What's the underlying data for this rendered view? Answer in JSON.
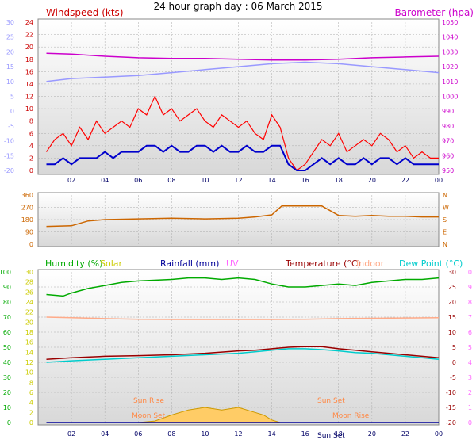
{
  "title": "24 hour graph day : 06 March 2015",
  "x_ticks": [
    "02",
    "04",
    "06",
    "08",
    "10",
    "12",
    "14",
    "16",
    "18",
    "20",
    "22",
    "00"
  ],
  "colors": {
    "windspeed": "#ff0000",
    "windavg": "#0000cc",
    "barometer": "#cc00cc",
    "outer_temp_axis": "#9999ff",
    "direction": "#cc6600",
    "humidity": "#00aa00",
    "solar": "#cccc00",
    "rainfall": "#000099",
    "uv": "#ff66ff",
    "temperature": "#990000",
    "indoor": "#ffaa88",
    "dewpoint": "#00cccc",
    "grid": "#aaaaaa"
  },
  "chart_data": [
    {
      "type": "line",
      "name": "wind-baro",
      "left_label": "Windspeed (kts)",
      "right_label": "Barometer (hpa)",
      "outer_left_ticks": [
        "30",
        "25",
        "20",
        "15",
        "10",
        "5",
        "0",
        "-5",
        "-10",
        "-15",
        "-20"
      ],
      "y_left_ticks": [
        "24",
        "22",
        "20",
        "18",
        "16",
        "14",
        "12",
        "10",
        "8",
        "6",
        "4",
        "2",
        "0"
      ],
      "y_right_ticks": [
        "1050",
        "1040",
        "1030",
        "1020",
        "1010",
        "1000",
        "990",
        "980",
        "970",
        "960",
        "950"
      ],
      "ylim_left": [
        0,
        24
      ],
      "ylim_right": [
        950,
        1050
      ],
      "ylim_outer": [
        -20,
        30
      ],
      "series": [
        {
          "key": "gust",
          "axis": "left",
          "x": [
            0.5,
            1,
            1.5,
            2,
            2.5,
            3,
            3.5,
            4,
            4.5,
            5,
            5.5,
            6,
            6.5,
            7,
            7.5,
            8,
            8.5,
            9,
            9.5,
            10,
            10.5,
            11,
            11.5,
            12,
            12.5,
            13,
            13.5,
            14,
            14.5,
            15,
            15.5,
            16,
            16.5,
            17,
            17.5,
            18,
            18.5,
            19,
            19.5,
            20,
            20.5,
            21,
            21.5,
            22,
            22.5,
            23,
            23.5,
            24
          ],
          "y": [
            3,
            5,
            6,
            4,
            7,
            5,
            8,
            6,
            7,
            8,
            7,
            10,
            9,
            12,
            9,
            10,
            8,
            9,
            10,
            8,
            7,
            9,
            8,
            7,
            8,
            6,
            5,
            9,
            7,
            2,
            0,
            1,
            3,
            5,
            4,
            6,
            3,
            4,
            5,
            4,
            6,
            5,
            3,
            4,
            2,
            3,
            2,
            2
          ]
        },
        {
          "key": "avg",
          "axis": "left",
          "x": [
            0.5,
            1,
            1.5,
            2,
            2.5,
            3,
            3.5,
            4,
            4.5,
            5,
            5.5,
            6,
            6.5,
            7,
            7.5,
            8,
            8.5,
            9,
            9.5,
            10,
            10.5,
            11,
            11.5,
            12,
            12.5,
            13,
            13.5,
            14,
            14.5,
            15,
            15.5,
            16,
            16.5,
            17,
            17.5,
            18,
            18.5,
            19,
            19.5,
            20,
            20.5,
            21,
            21.5,
            22,
            22.5,
            23,
            23.5,
            24
          ],
          "y": [
            1,
            1,
            2,
            1,
            2,
            2,
            2,
            3,
            2,
            3,
            3,
            3,
            4,
            4,
            3,
            4,
            3,
            3,
            4,
            4,
            3,
            4,
            3,
            3,
            4,
            3,
            3,
            4,
            4,
            1,
            0,
            0,
            1,
            2,
            1,
            2,
            1,
            1,
            2,
            1,
            2,
            2,
            1,
            2,
            1,
            1,
            1,
            1
          ]
        },
        {
          "key": "baro",
          "axis": "right",
          "x": [
            0.5,
            2,
            4,
            6,
            8,
            10,
            12,
            14,
            16,
            18,
            20,
            22,
            24
          ],
          "y": [
            1029,
            1028.5,
            1027,
            1026,
            1025.5,
            1025.5,
            1025,
            1024.5,
            1024.5,
            1025,
            1026,
            1026.5,
            1027
          ]
        },
        {
          "key": "temp_outer",
          "axis": "outer",
          "x": [
            0.5,
            2,
            4,
            6,
            8,
            10,
            12,
            14,
            16,
            18,
            20,
            22,
            24
          ],
          "y": [
            10,
            11,
            11.5,
            12,
            13,
            14,
            15,
            16,
            16.5,
            16,
            15,
            14,
            13
          ]
        }
      ]
    },
    {
      "type": "line",
      "name": "wind-direction",
      "y_ticks": [
        "360",
        "270",
        "180",
        "90",
        "0"
      ],
      "right_letters": [
        "N",
        "W",
        "S",
        "E",
        "N"
      ],
      "ylim": [
        0,
        360
      ],
      "series": [
        {
          "key": "dir",
          "x": [
            0.5,
            2,
            3,
            4,
            6,
            8,
            10,
            12,
            13,
            14,
            14.6,
            15,
            16,
            17,
            18,
            19,
            20,
            21,
            22,
            23,
            24
          ],
          "y": [
            130,
            135,
            170,
            180,
            185,
            190,
            185,
            190,
            200,
            215,
            280,
            280,
            280,
            280,
            210,
            205,
            210,
            205,
            205,
            200,
            200
          ]
        }
      ]
    },
    {
      "type": "line",
      "name": "temp-humidity",
      "legend": [
        "Humidity (%)",
        "Solar",
        "Rainfall (mm)",
        "UV",
        "Temperature (°C)",
        "Indoor",
        "Dew Point (°C)"
      ],
      "humidity_ticks": [
        "100",
        "90",
        "80",
        "70",
        "60",
        "50",
        "40",
        "30",
        "20",
        "10",
        "0"
      ],
      "solar_ticks": [
        "30",
        "28",
        "26",
        "24",
        "22",
        "20",
        "18",
        "16",
        "14",
        "12",
        "10",
        "8",
        "6",
        "4",
        "2",
        "0"
      ],
      "temp_ticks": [
        "30",
        "25",
        "20",
        "15",
        "10",
        "5",
        "0",
        "-5",
        "-10",
        "-15",
        "-20"
      ],
      "uv_ticks": [
        "10",
        "9",
        "8",
        "7",
        "6",
        "5",
        "4",
        "3",
        "2",
        "1",
        "0"
      ],
      "ylim_humidity": [
        0,
        100
      ],
      "ylim_solar": [
        0,
        30
      ],
      "ylim_temp": [
        -20,
        30
      ],
      "annotations": {
        "sun_rise": "Sun Rise",
        "sun_set": "Sun Set",
        "moon_set": "Moon Set",
        "moon_rise": "Moon Rise",
        "sun_set_axis": "Sun Set"
      },
      "series": [
        {
          "key": "humidity",
          "x": [
            0.5,
            1.5,
            2,
            3,
            4,
            5,
            6,
            8,
            9,
            10,
            11,
            12,
            13,
            14,
            14.5,
            15,
            16,
            17,
            18,
            19,
            20,
            21,
            22,
            23,
            24
          ],
          "y": [
            85,
            84,
            86,
            89,
            91,
            93,
            94,
            95,
            96,
            96,
            95,
            96,
            95,
            92,
            91,
            90,
            90,
            91,
            92,
            91,
            93,
            94,
            95,
            95,
            96
          ]
        },
        {
          "key": "temperature",
          "x": [
            0.5,
            2,
            4,
            6,
            8,
            10,
            12,
            13,
            14,
            15,
            16,
            17,
            18,
            19,
            20,
            21,
            22,
            23,
            24
          ],
          "y": [
            1,
            1.5,
            2,
            2.2,
            2.5,
            3,
            3.8,
            4,
            4.5,
            5,
            5.2,
            5.2,
            4.5,
            4,
            3.5,
            3,
            2.5,
            2,
            1.5
          ]
        },
        {
          "key": "dewpoint",
          "x": [
            0.5,
            2,
            4,
            6,
            8,
            10,
            12,
            13,
            14,
            15,
            16,
            17,
            18,
            19,
            20,
            21,
            22,
            23,
            24
          ],
          "y": [
            0,
            0.5,
            1,
            1.5,
            2,
            2.5,
            3,
            3.5,
            4,
            4.5,
            4.5,
            4.2,
            3.8,
            3.2,
            3,
            2.5,
            2,
            1.5,
            1
          ]
        },
        {
          "key": "indoor",
          "x": [
            0.5,
            2,
            4,
            6,
            8,
            10,
            12,
            14,
            16,
            18,
            20,
            22,
            24
          ],
          "y": [
            15,
            14.8,
            14.5,
            14.3,
            14.2,
            14.2,
            14.2,
            14.2,
            14.3,
            14.5,
            14.6,
            14.7,
            14.8
          ]
        },
        {
          "key": "solar",
          "x": [
            6,
            7,
            8,
            9,
            10,
            11,
            12,
            13,
            13.5,
            14,
            14.5
          ],
          "y": [
            0,
            0.3,
            1.5,
            2.5,
            3,
            2.5,
            3,
            2,
            1.5,
            0.5,
            0
          ]
        },
        {
          "key": "rainfall",
          "x": [
            0.5,
            24
          ],
          "y": [
            0,
            0
          ]
        }
      ]
    }
  ]
}
